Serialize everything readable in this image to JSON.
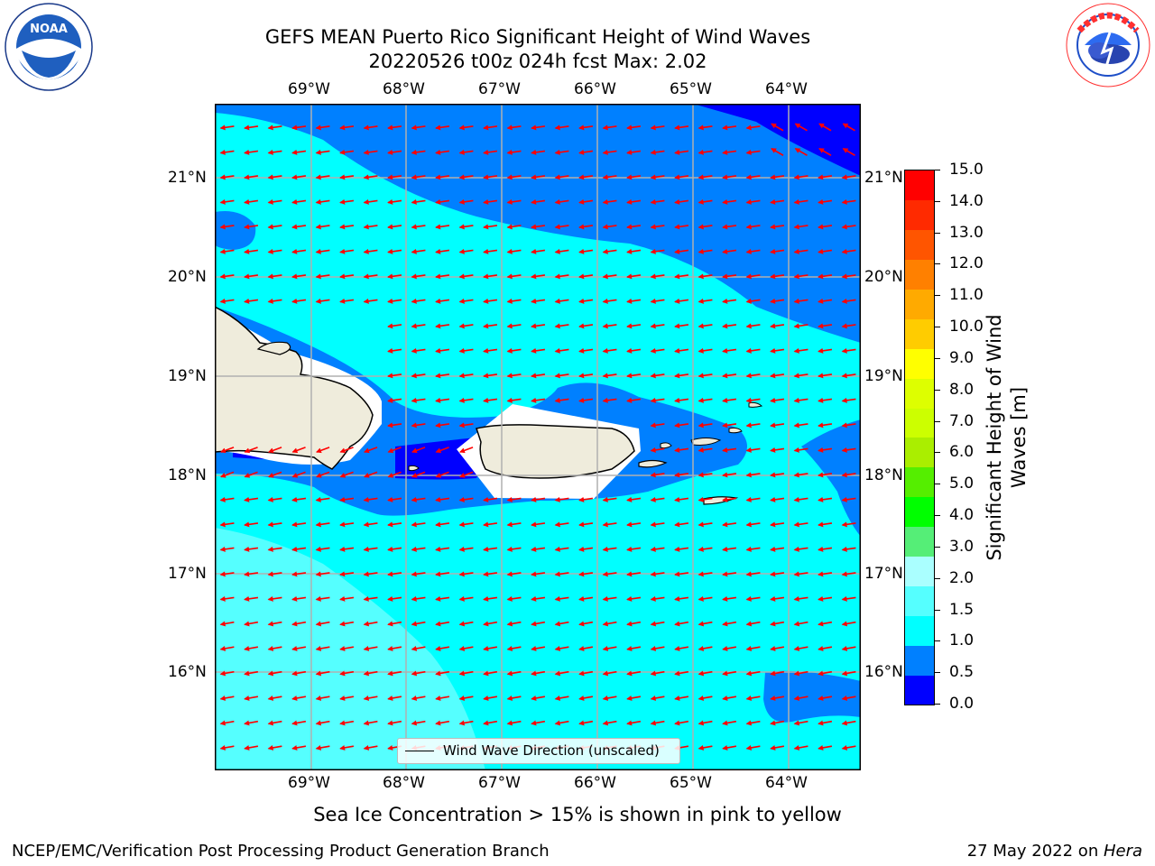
{
  "header": {
    "title_line1": "GEFS MEAN Puerto Rico Significant Height of Wind Waves",
    "title_line2": "20220526 t00z 024h fcst   Max: 2.02"
  },
  "logos": {
    "noaa_text": "NOAA",
    "noaa_ring_text": "NATIONAL OCEANIC AND ATMOSPHERIC ADMINISTRATION · U.S. DEPARTMENT OF COMMERCE",
    "nws_ring_text": "NATIONAL WEATHER SERVICE"
  },
  "map": {
    "lon_labels": [
      "69°W",
      "68°W",
      "67°W",
      "66°W",
      "65°W",
      "64°W"
    ],
    "lat_labels": [
      "21°N",
      "20°N",
      "19°N",
      "18°N",
      "17°N",
      "16°N"
    ],
    "legend_label": "Wind Wave Direction (unscaled)",
    "vector_color": "#ff0000",
    "land_color": "#efecdc",
    "grid_color": "#b0b0b0"
  },
  "colorbar": {
    "label": "Significant Height of Wind Waves [m]",
    "ticks": [
      "15.0",
      "14.0",
      "13.0",
      "12.0",
      "11.0",
      "10.0",
      "9.0",
      "8.0",
      "7.0",
      "6.0",
      "5.0",
      "4.0",
      "3.0",
      "2.0",
      "1.5",
      "1.0",
      "0.5",
      "0.0"
    ],
    "colors": [
      "#0000ff",
      "#0080ff",
      "#00ffff",
      "#55ffff",
      "#aaffff",
      "#55ee77",
      "#00ff00",
      "#55ee00",
      "#aaee00",
      "#ccff00",
      "#ddff00",
      "#ffff00",
      "#ffcc00",
      "#ffaa00",
      "#ff8000",
      "#ff5500",
      "#ff2a00",
      "#ff0000"
    ]
  },
  "caption": "Sea Ice Concentration > 15% is shown in pink to yellow",
  "footer": {
    "left": "NCEP/EMC/Verification Post Processing Product Generation Branch",
    "date": "27 May 2022 on ",
    "machine": "Hera"
  }
}
